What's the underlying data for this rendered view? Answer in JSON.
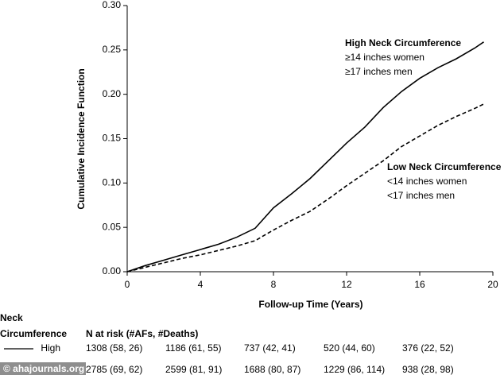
{
  "chart_data": {
    "type": "line",
    "xlabel": "Follow-up Time (Years)",
    "ylabel": "Cumulative Incidence Function",
    "xlim": [
      0,
      20
    ],
    "xticks": [
      0,
      4,
      8,
      12,
      16,
      20
    ],
    "ylim": [
      0,
      0.3
    ],
    "yticks": [
      {
        "value": 0,
        "label": "0.00"
      },
      {
        "value": 0.05,
        "label": "0.05"
      },
      {
        "value": 0.1,
        "label": "0.10"
      },
      {
        "value": 0.15,
        "label": "0.15"
      },
      {
        "value": 0.2,
        "label": "0.20"
      },
      {
        "value": 0.25,
        "label": "0.25"
      },
      {
        "value": 0.3,
        "label": "0.30"
      }
    ],
    "x": [
      0,
      1,
      2,
      3,
      4,
      5,
      6,
      7,
      8,
      9,
      10,
      11,
      12,
      13,
      14,
      15,
      16,
      17,
      18,
      19,
      19.5
    ],
    "series": [
      {
        "name": "High Neck Circumference",
        "notes": [
          "≥14 inches women",
          "≥17 inches men"
        ],
        "color": "#000000",
        "dashed": false,
        "values": [
          0,
          0.007,
          0.013,
          0.019,
          0.025,
          0.031,
          0.039,
          0.049,
          0.072,
          0.088,
          0.105,
          0.125,
          0.145,
          0.163,
          0.185,
          0.203,
          0.218,
          0.23,
          0.24,
          0.252,
          0.259
        ]
      },
      {
        "name": "Low Neck Circumference",
        "notes": [
          "<14 inches women",
          "<17 inches men"
        ],
        "color": "#000000",
        "dashed": true,
        "values": [
          0,
          0.005,
          0.01,
          0.015,
          0.019,
          0.024,
          0.029,
          0.035,
          0.047,
          0.058,
          0.068,
          0.082,
          0.097,
          0.111,
          0.125,
          0.141,
          0.153,
          0.165,
          0.175,
          0.184,
          0.189
        ]
      }
    ],
    "risk_table": {
      "group_title": [
        "Neck",
        "Circumference"
      ],
      "title": "N at risk (#AFs, #Deaths)",
      "rows": [
        {
          "label": "High",
          "cells": [
            "1308 (58, 26)",
            "1186 (61, 55)",
            "737 (42, 41)",
            "520 (44, 60)",
            "376 (22, 52)"
          ]
        },
        {
          "cells": [
            "2785 (69, 62)",
            "2599 (81, 91)",
            "1688 (80, 87)",
            "1229 (86, 114)",
            "938 (28, 98)"
          ]
        }
      ]
    },
    "watermark": "© ahajournals.org"
  }
}
